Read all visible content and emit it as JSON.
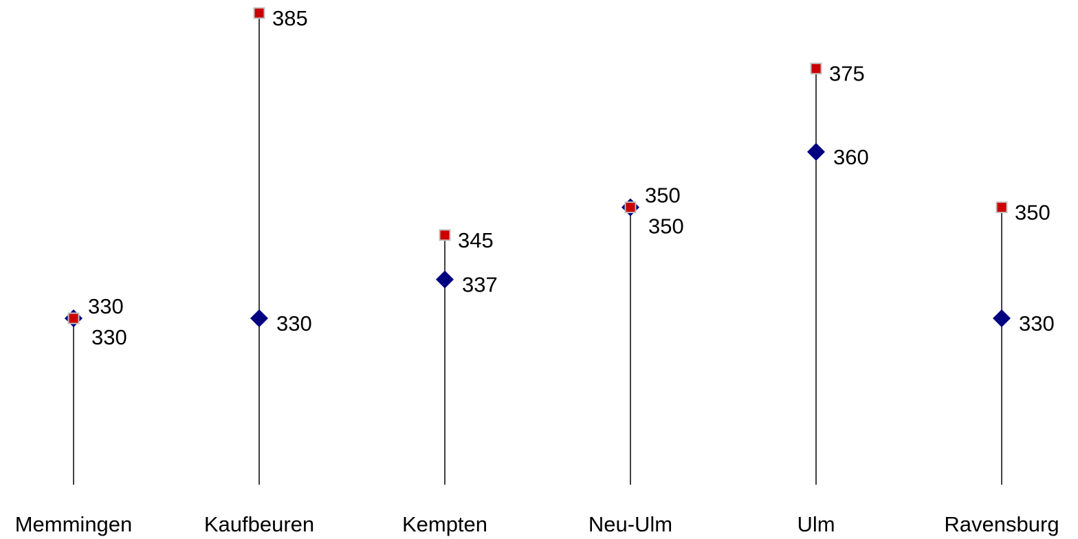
{
  "chart_data": {
    "type": "scatter",
    "categories": [
      "Memmingen",
      "Kaufbeuren",
      "Kempten",
      "Neu-Ulm",
      "Ulm",
      "Ravensburg"
    ],
    "series": [
      {
        "marker": "diamond",
        "color": "#000080",
        "values": [
          330,
          330,
          337,
          350,
          360,
          330
        ]
      },
      {
        "marker": "square",
        "color": "#cc0000",
        "values": [
          330,
          385,
          345,
          350,
          375,
          350
        ]
      }
    ],
    "ylim": [
      290,
      390
    ],
    "grid": false,
    "legend": "none",
    "stem_color": "#000000"
  }
}
